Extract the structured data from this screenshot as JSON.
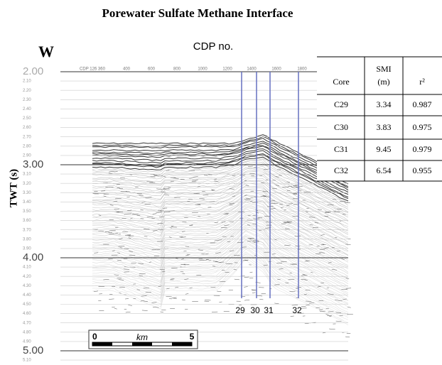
{
  "title": "Porewater Sulfate Methane Interface",
  "direction": "W",
  "x_axis_label": "CDP no.",
  "y_axis_label": "TWT (s)",
  "cdp_labels": [
    "CDP 126 360",
    "400",
    "600",
    "800",
    "1000",
    "1200",
    "1400",
    "1600",
    "1800"
  ],
  "y_major_labels": [
    "2.00",
    "3.00",
    "4.00",
    "5.00"
  ],
  "y_minor_labels": [
    [
      "2.10",
      "2.20",
      "2.30",
      "2.40",
      "2.50",
      "2.60",
      "2.70",
      "2.80",
      "2.90"
    ],
    [
      "3.10",
      "3.20",
      "3.30",
      "3.40",
      "3.50",
      "3.60",
      "3.70",
      "3.80",
      "3.90"
    ],
    [
      "4.10",
      "4.20",
      "4.30",
      "4.40",
      "4.50",
      "4.60",
      "4.70",
      "4.80",
      "4.90"
    ],
    [
      "5.10"
    ]
  ],
  "core_lines": [
    "29",
    "30",
    "31",
    "32"
  ],
  "scale_bar": {
    "start": "0",
    "unit": "km",
    "end": "5"
  },
  "table": {
    "header": {
      "core": "Core",
      "smi": "SMI",
      "smi_unit": "(m)",
      "r2": "r²"
    },
    "rows": [
      [
        "C29",
        "3.34",
        "0.987"
      ],
      [
        "C30",
        "3.83",
        "0.975"
      ],
      [
        "C31",
        "9.45",
        "0.979"
      ],
      [
        "C32",
        "6.54",
        "0.955"
      ]
    ]
  }
}
